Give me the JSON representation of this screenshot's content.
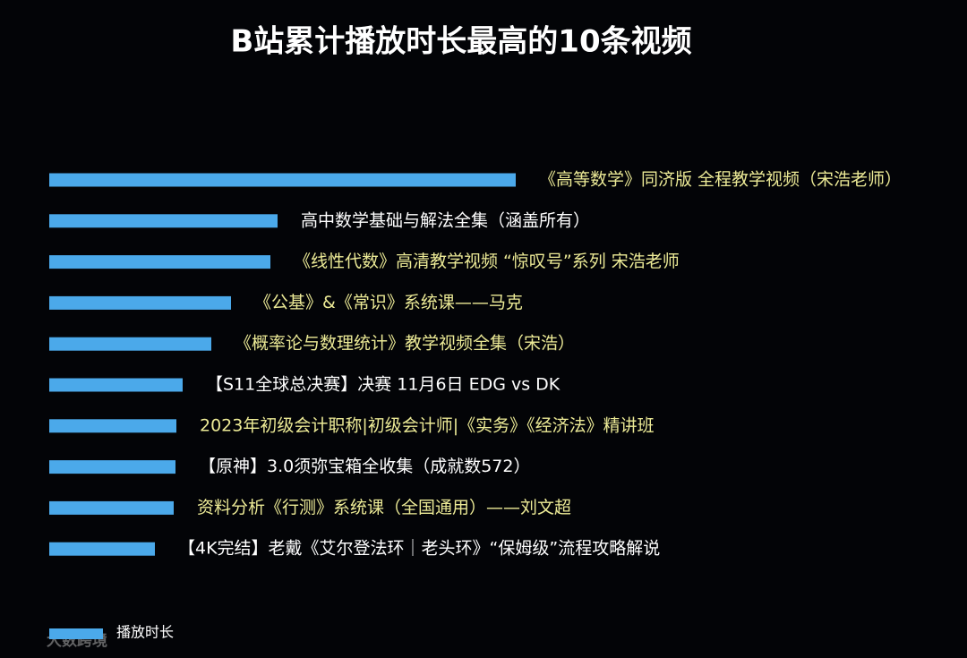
{
  "chart_data": {
    "type": "hbar",
    "title": "B站累计播放时长最高的10条视频",
    "categories": [
      "《高等数学》同济版 全程教学视频（宋浩老师）",
      "高中数学基础与解法全集（涵盖所有）",
      "《线性代数》高清教学视频 “惊叹号”系列 宋浩老师",
      "《公基》&《常识》系统课——马克",
      "《概率论与数理统计》教学视频全集（宋浩）",
      "【S11全球总决赛】决赛 11月6日 EDG vs DK",
      "2023年初级会计职称|初级会计师|《实务》《经济法》精讲班",
      "【原神】3.0须弥宝箱全收集（成就数572）",
      "资料分析《行测》系统课（全国通用）——刘文超",
      "【4K完结】老戴《艾尔登法环｜老头环》“保姆级”流程攻略解说"
    ],
    "series": [
      {
        "name": "播放时长",
        "color": "#4ba9ea",
        "values": [
          521,
          255,
          247,
          203,
          181,
          149,
          142,
          141,
          139,
          118
        ]
      }
    ],
    "label_colors": [
      "#ecea96",
      "#ffffff",
      "#ecea96",
      "#ecea96",
      "#ecea96",
      "#ffffff",
      "#ecea96",
      "#ffffff",
      "#ecea96",
      "#ffffff"
    ],
    "legend": "bottom-left",
    "watermark": "大数跨境"
  }
}
